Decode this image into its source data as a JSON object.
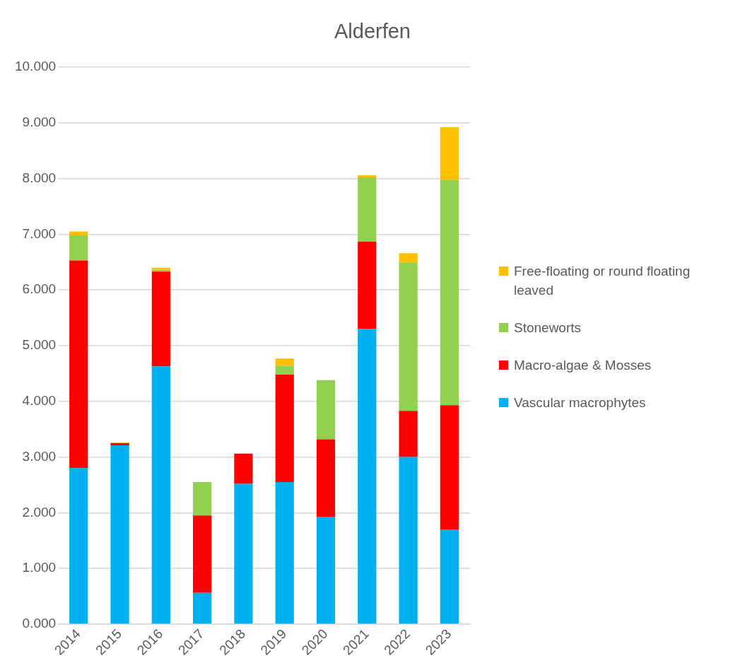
{
  "chart_data": {
    "type": "bar",
    "title": "Alderfen",
    "stacked": true,
    "legend": "right",
    "grid": "y",
    "categories": [
      "2014",
      "2015",
      "2016",
      "2017",
      "2018",
      "2019",
      "2020",
      "2021",
      "2022",
      "2023"
    ],
    "series": [
      {
        "name": "Vascular macrophytes",
        "color": "#00b0f0",
        "values": [
          2.8,
          3.21,
          4.63,
          0.56,
          2.52,
          2.55,
          1.93,
          5.3,
          3.0,
          1.7
        ]
      },
      {
        "name": "Macro-algae & Mosses",
        "color": "#ff0000",
        "values": [
          3.73,
          0.04,
          1.7,
          1.39,
          0.54,
          1.93,
          1.39,
          1.57,
          0.83,
          2.23
        ]
      },
      {
        "name": "Stoneworts",
        "color": "#92d050",
        "values": [
          0.45,
          0,
          0.03,
          0.6,
          0,
          0.16,
          1.06,
          1.15,
          2.66,
          4.05
        ]
      },
      {
        "name": "Free-floating or round floating leaved",
        "color": "#ffc000",
        "values": [
          0.07,
          0.01,
          0.04,
          0,
          0,
          0.13,
          0,
          0.04,
          0.17,
          0.94
        ]
      }
    ],
    "ylim": [
      0,
      10
    ],
    "yticks": [
      {
        "value": 0,
        "label": "0.000"
      },
      {
        "value": 1,
        "label": "1.000"
      },
      {
        "value": 2,
        "label": "2.000"
      },
      {
        "value": 3,
        "label": "3.000"
      },
      {
        "value": 4,
        "label": "4.000"
      },
      {
        "value": 5,
        "label": "5.000"
      },
      {
        "value": 6,
        "label": "6.000"
      },
      {
        "value": 7,
        "label": "7.000"
      },
      {
        "value": 8,
        "label": "8.000"
      },
      {
        "value": 9,
        "label": "9.000"
      },
      {
        "value": 10,
        "label": "10.000"
      }
    ]
  }
}
